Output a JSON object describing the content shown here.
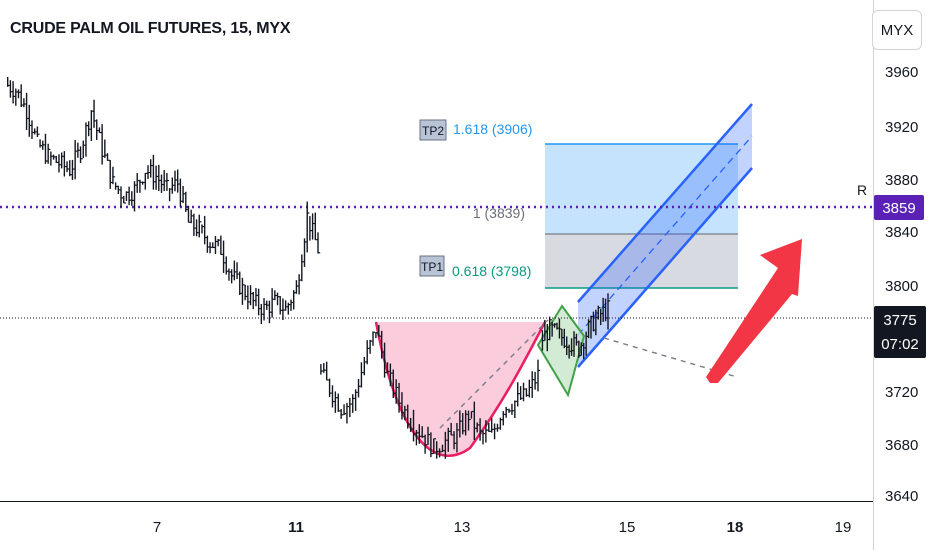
{
  "header": {
    "title": "CRUDE PALM OIL FUTURES, 15, MYX",
    "currency_button": "MYX"
  },
  "price_axis": {
    "ticks": [
      "3960",
      "3920",
      "3880",
      "3840",
      "3800",
      "3720",
      "3680",
      "3640"
    ]
  },
  "time_axis": {
    "ticks": [
      "7",
      "11",
      "13",
      "15",
      "18",
      "19"
    ],
    "bold": [
      "11",
      "18"
    ]
  },
  "markers": {
    "resistance_label": "R",
    "resistance_price": "3859",
    "last_price": "3775",
    "countdown": "07:02",
    "resistance_color": "#5b21b6"
  },
  "fib": {
    "tp2_tag": "TP2",
    "tp2_text": "1.618 (3906)",
    "level1_text": "1 (3839)",
    "tp1_tag": "TP1",
    "tp1_text": "0.618 (3798)"
  },
  "colors": {
    "up_arrow": "#f23645",
    "channel": "#2962ff",
    "cup": "#e91e63",
    "flag": "#43a047",
    "tp2_text": "#2196f3",
    "tp1_text": "#089981"
  },
  "chart_data": {
    "type": "candlestick",
    "price_ylim": [
      3640,
      3980
    ],
    "time_ticks": [
      "7",
      "11",
      "13",
      "15",
      "18",
      "19"
    ],
    "price_ticks": [
      3640,
      3680,
      3720,
      3800,
      3840,
      3880,
      3920,
      3960
    ],
    "series_close_approx": [
      3955,
      3950,
      3935,
      3910,
      3900,
      3895,
      3890,
      3905,
      3935,
      3905,
      3880,
      3870,
      3875,
      3890,
      3885,
      3875,
      3880,
      3850,
      3845,
      3835,
      3830,
      3810,
      3800,
      3790,
      3785,
      3790,
      3785,
      3800,
      3855,
      3830,
      3740,
      3725,
      3710,
      3715,
      3745,
      3770,
      3735,
      3715,
      3700,
      3690,
      3680,
      3685,
      3690,
      3705,
      3690,
      3690,
      3710,
      3715,
      3720,
      3735,
      3760,
      3770,
      3765,
      3760,
      3755,
      3770,
      3780,
      3785
    ],
    "resistance": 3859,
    "last_price": 3775,
    "fib_levels": [
      {
        "ratio": 1.618,
        "price": 3906
      },
      {
        "ratio": 1,
        "price": 3839
      },
      {
        "ratio": 0.618,
        "price": 3798
      }
    ]
  }
}
